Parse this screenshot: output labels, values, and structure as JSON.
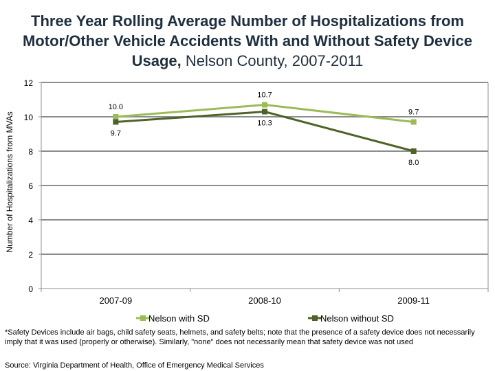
{
  "chart_data": {
    "type": "line",
    "title_bold": "Three Year Rolling Average Number of Hospitalizations from Motor/Other Vehicle Accidents With and Without Safety Device Usage,",
    "title_rest": " Nelson County, 2007-2011",
    "ylabel": "Number of Hospitalizations from MVAs",
    "xlabel": "",
    "categories": [
      "2007-09",
      "2008-10",
      "2009-11"
    ],
    "ylim": [
      0,
      12
    ],
    "yticks": [
      0,
      2,
      4,
      6,
      8,
      10,
      12
    ],
    "grid": true,
    "legend_position": "bottom",
    "series": [
      {
        "name": "Nelson with SD",
        "values": [
          10.0,
          10.7,
          9.7
        ],
        "labels": [
          "10.0",
          "10.7",
          "9.7"
        ],
        "color": "#9bbb59"
      },
      {
        "name": "Nelson without SD",
        "values": [
          9.7,
          10.3,
          8.0
        ],
        "labels": [
          "9.7",
          "10.3",
          "8.0"
        ],
        "color": "#4f6228"
      }
    ]
  },
  "footnote": "*Safety Devices include air bags, child safety seats, helmets, and safety belts; note that the presence of a safety device does not necessarily imply that it was used (properly or otherwise). Similarly, \"none\" does not necessarily mean that safety device was not used",
  "source": "Source: Virginia Department of Health, Office of Emergency Medical Services"
}
